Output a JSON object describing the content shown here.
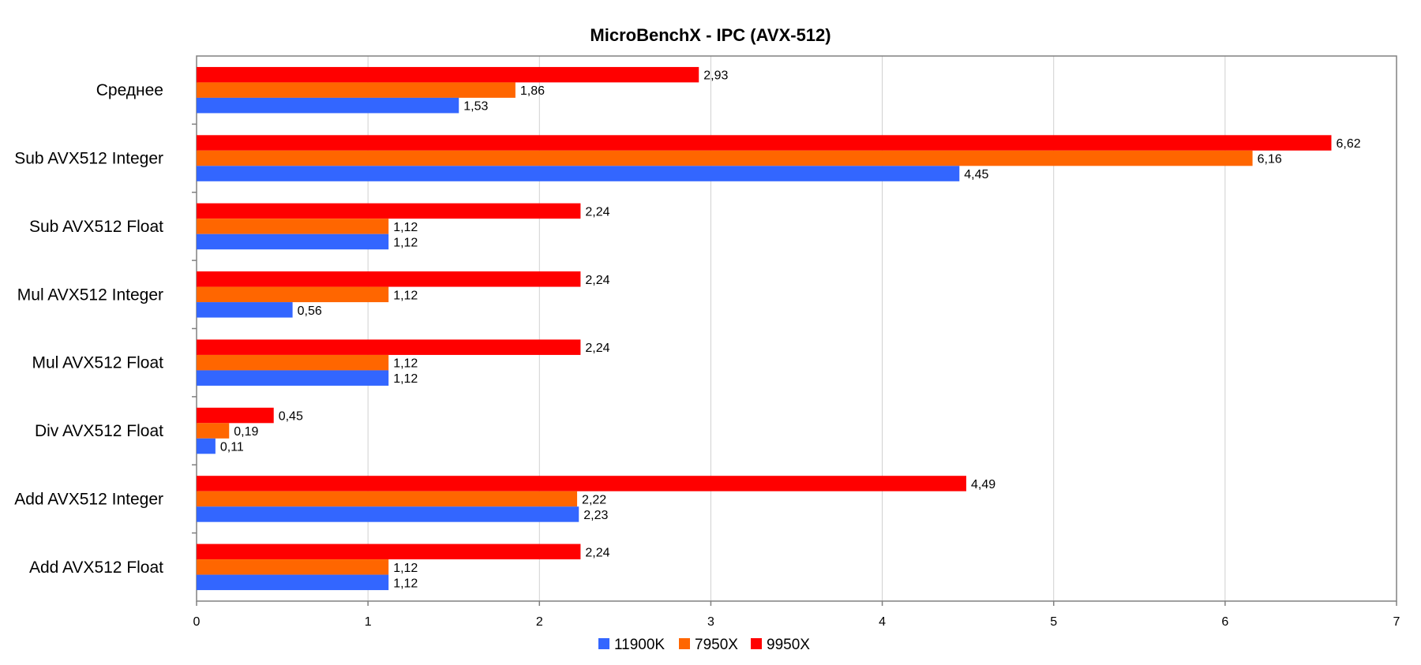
{
  "chart_data": {
    "type": "bar",
    "orientation": "horizontal",
    "title": "MicroBenchX - IPC (AVX-512)",
    "xlabel": "",
    "ylabel": "",
    "xlim": [
      0,
      7
    ],
    "x_ticks": [
      "0",
      "1",
      "2",
      "3",
      "4",
      "5",
      "6",
      "7"
    ],
    "grid": true,
    "legend_position": "bottom",
    "categories": [
      "Среднее",
      "Sub AVX512 Integer",
      "Sub AVX512 Float",
      "Mul AVX512 Integer",
      "Mul AVX512 Float",
      "Div AVX512 Float",
      "Add AVX512 Integer",
      "Add AVX512 Float"
    ],
    "series": [
      {
        "name": "9950X",
        "color": "#ff0000",
        "values": [
          2.93,
          6.62,
          2.24,
          2.24,
          2.24,
          0.45,
          4.49,
          2.24
        ],
        "labels": [
          "2,93",
          "6,62",
          "2,24",
          "2,24",
          "2,24",
          "0,45",
          "4,49",
          "2,24"
        ]
      },
      {
        "name": "7950X",
        "color": "#ff6600",
        "values": [
          1.86,
          6.16,
          1.12,
          1.12,
          1.12,
          0.19,
          2.22,
          1.12
        ],
        "labels": [
          "1,86",
          "6,16",
          "1,12",
          "1,12",
          "1,12",
          "0,19",
          "2,22",
          "1,12"
        ]
      },
      {
        "name": "11900K",
        "color": "#3366ff",
        "values": [
          1.53,
          4.45,
          1.12,
          0.56,
          1.12,
          0.11,
          2.23,
          1.12
        ],
        "labels": [
          "1,53",
          "4,45",
          "1,12",
          "0,56",
          "1,12",
          "0,11",
          "2,23",
          "1,12"
        ]
      }
    ],
    "legend_order": [
      "11900K",
      "7950X",
      "9950X"
    ]
  }
}
